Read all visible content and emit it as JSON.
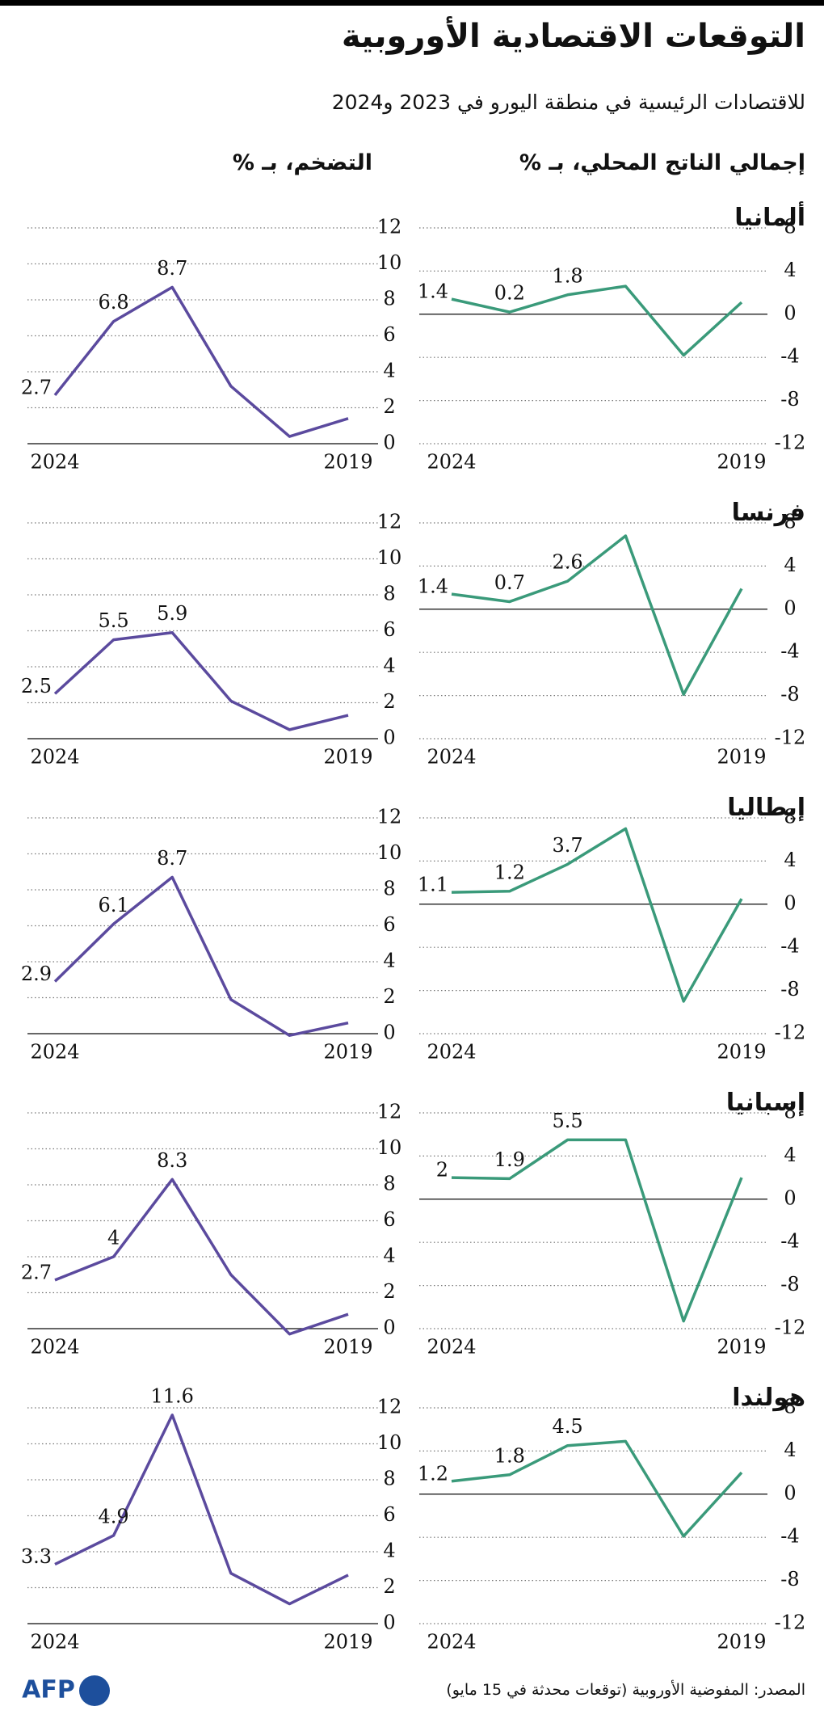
{
  "header": {
    "title": "التوقعات الاقتصادية الأوروبية",
    "subtitle": "للاقتصادات الرئيسية في منطقة اليورو في 2023 و2024"
  },
  "column_headings": {
    "gdp": "إجمالي الناتج المحلي، بـ %",
    "inflation": "التضخم، بـ %"
  },
  "countries": [
    "ألمانيا",
    "فرنسا",
    "إيطاليا",
    "إسبانيا",
    "هولندا"
  ],
  "source": "المصدر: المفوضية الأوروبية (توقعات محدثة في 15 مايو)",
  "logo": "AFP",
  "chart_data": [
    {
      "type": "line",
      "categories": [
        "2019",
        null,
        null,
        null,
        null,
        "2024"
      ],
      "values": [
        1.1,
        -3.8,
        2.6,
        1.8,
        0.2,
        1.4
      ],
      "color": "#3a9a7a",
      "ylim": [
        -12,
        8
      ],
      "yticks": [
        -12,
        -8,
        -4,
        0,
        4,
        8
      ],
      "grid": true
    },
    {
      "type": "line",
      "categories": [
        "2019",
        null,
        null,
        null,
        null,
        "2024"
      ],
      "values": [
        1.4,
        0.4,
        3.2,
        8.7,
        6.8,
        2.7
      ],
      "color": "#5b4a9e",
      "ylim": [
        0,
        12
      ],
      "yticks": [
        0,
        2,
        4,
        6,
        8,
        10,
        12
      ],
      "grid": true
    },
    {
      "type": "line",
      "categories": [
        "2019",
        null,
        null,
        null,
        null,
        "2024"
      ],
      "values": [
        1.9,
        -7.9,
        6.8,
        2.6,
        0.7,
        1.4
      ],
      "color": "#3a9a7a",
      "ylim": [
        -12,
        8
      ],
      "yticks": [
        -12,
        -8,
        -4,
        0,
        4,
        8
      ],
      "grid": true
    },
    {
      "type": "line",
      "categories": [
        "2019",
        null,
        null,
        null,
        null,
        "2024"
      ],
      "values": [
        1.3,
        0.5,
        2.1,
        5.9,
        5.5,
        2.5
      ],
      "color": "#5b4a9e",
      "ylim": [
        0,
        12
      ],
      "yticks": [
        0,
        2,
        4,
        6,
        8,
        10,
        12
      ],
      "grid": true
    },
    {
      "type": "line",
      "categories": [
        "2019",
        null,
        null,
        null,
        null,
        "2024"
      ],
      "values": [
        0.5,
        -9.0,
        7.0,
        3.7,
        1.2,
        1.1
      ],
      "color": "#3a9a7a",
      "ylim": [
        -12,
        8
      ],
      "yticks": [
        -12,
        -8,
        -4,
        0,
        4,
        8
      ],
      "grid": true
    },
    {
      "type": "line",
      "categories": [
        "2019",
        null,
        null,
        null,
        null,
        "2024"
      ],
      "values": [
        0.6,
        -0.1,
        1.9,
        8.7,
        6.1,
        2.9
      ],
      "color": "#5b4a9e",
      "ylim": [
        0,
        12
      ],
      "yticks": [
        0,
        2,
        4,
        6,
        8,
        10,
        12
      ],
      "grid": true
    },
    {
      "type": "line",
      "categories": [
        "2019",
        null,
        null,
        null,
        null,
        "2024"
      ],
      "values": [
        2.0,
        -11.3,
        5.5,
        5.5,
        1.9,
        2
      ],
      "color": "#3a9a7a",
      "ylim": [
        -12,
        8
      ],
      "yticks": [
        -12,
        -8,
        -4,
        0,
        4,
        8
      ],
      "grid": true
    },
    {
      "type": "line",
      "categories": [
        "2019",
        null,
        null,
        null,
        null,
        "2024"
      ],
      "values": [
        0.8,
        -0.3,
        3.0,
        8.3,
        4,
        2.7
      ],
      "color": "#5b4a9e",
      "ylim": [
        0,
        12
      ],
      "yticks": [
        0,
        2,
        4,
        6,
        8,
        10,
        12
      ],
      "grid": true
    },
    {
      "type": "line",
      "categories": [
        "2019",
        null,
        null,
        null,
        null,
        "2024"
      ],
      "values": [
        2.0,
        -3.9,
        4.9,
        4.5,
        1.8,
        1.2
      ],
      "color": "#3a9a7a",
      "ylim": [
        -12,
        8
      ],
      "yticks": [
        -12,
        -8,
        -4,
        0,
        4,
        8
      ],
      "grid": true
    },
    {
      "type": "line",
      "categories": [
        "2019",
        null,
        null,
        null,
        null,
        "2024"
      ],
      "values": [
        2.7,
        1.1,
        2.8,
        11.6,
        4.9,
        3.3
      ],
      "color": "#5b4a9e",
      "ylim": [
        0,
        12
      ],
      "yticks": [
        0,
        2,
        4,
        6,
        8,
        10,
        12
      ],
      "grid": true
    }
  ]
}
